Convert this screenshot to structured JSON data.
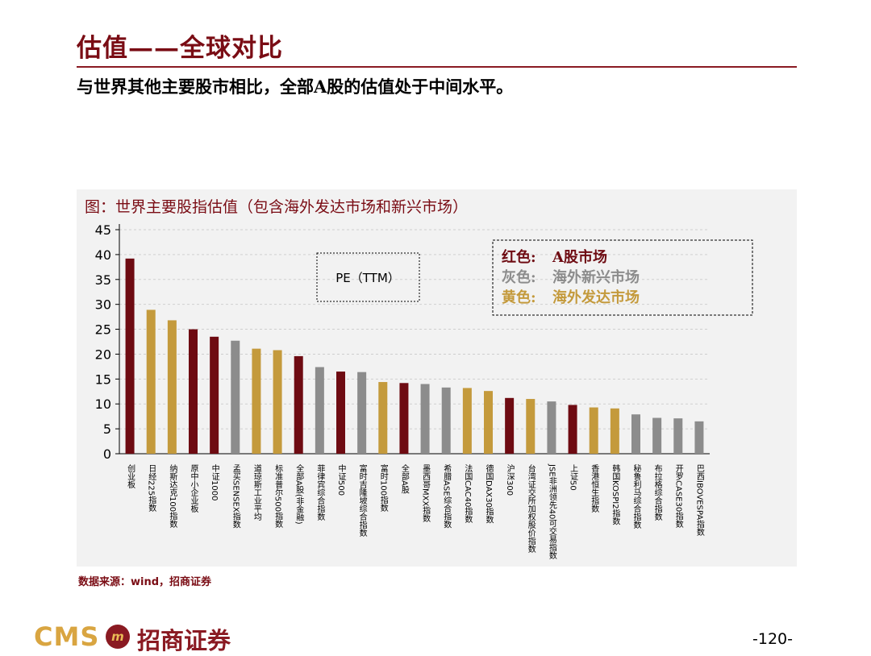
{
  "header": {
    "title": "估值——全球对比",
    "subtitle": "与世界其他主要股市相比，全部A股的估值处于中间水平。"
  },
  "colors": {
    "red": "#6e0b12",
    "gray": "#8c8c8c",
    "yellow": "#c49a3c"
  },
  "chart_data": {
    "type": "bar",
    "title": "图：世界主要股指估值（包含海外发达市场和新兴市场）",
    "ylim": [
      0,
      45
    ],
    "yticks": [
      0,
      5,
      10,
      15,
      20,
      25,
      30,
      35,
      40,
      45
    ],
    "grid": true,
    "label_box": "PE（TTM）",
    "legend": [
      {
        "key": "红色:",
        "text": "A股市场",
        "group": "red"
      },
      {
        "key": "灰色:",
        "text": "海外新兴市场",
        "group": "gray"
      },
      {
        "key": "黄色:",
        "text": "海外发达市场",
        "group": "yellow"
      }
    ],
    "categories": [
      "创业板",
      "日经225指数",
      "纳斯达克100指数",
      "原中小企业板",
      "中证1000",
      "孟买SENSEX指数",
      "道琼斯工业平均",
      "标准普尔500指数",
      "全部A股(非金融)",
      "菲律宾综合指数",
      "中证500",
      "富时吉隆坡综合指数",
      "富时100指数",
      "全部A股",
      "墨西哥MXX指数",
      "希腊ASE综合指数",
      "法国CAC40指数",
      "德国DAX30指数",
      "沪深300",
      "台湾证交所加权股价指数",
      "JSE非洲领先40可交易指数",
      "上证50",
      "香港恒生指数",
      "韩国KOSPI2指数",
      "秘鲁利马综合指数",
      "布拉格综合指数",
      "开罗CASE30指数",
      "巴西IBOVESPA指数"
    ],
    "values": [
      39.2,
      28.9,
      26.8,
      25.0,
      23.5,
      22.7,
      21.1,
      20.8,
      19.6,
      17.4,
      16.5,
      16.4,
      14.4,
      14.2,
      14.0,
      13.3,
      13.2,
      12.6,
      11.2,
      11.0,
      10.5,
      9.8,
      9.3,
      9.1,
      7.9,
      7.2,
      7.1,
      6.5
    ],
    "groups": [
      "red",
      "yellow",
      "yellow",
      "red",
      "red",
      "gray",
      "yellow",
      "yellow",
      "red",
      "gray",
      "red",
      "gray",
      "yellow",
      "red",
      "gray",
      "gray",
      "yellow",
      "yellow",
      "red",
      "yellow",
      "gray",
      "red",
      "yellow",
      "yellow",
      "gray",
      "gray",
      "gray",
      "gray"
    ]
  },
  "footer": {
    "source": "数据来源：wind，招商证券",
    "logo_text": "CMS",
    "logo_mark": "m",
    "logo_cn": "招商证券",
    "page_number": "-120-"
  }
}
